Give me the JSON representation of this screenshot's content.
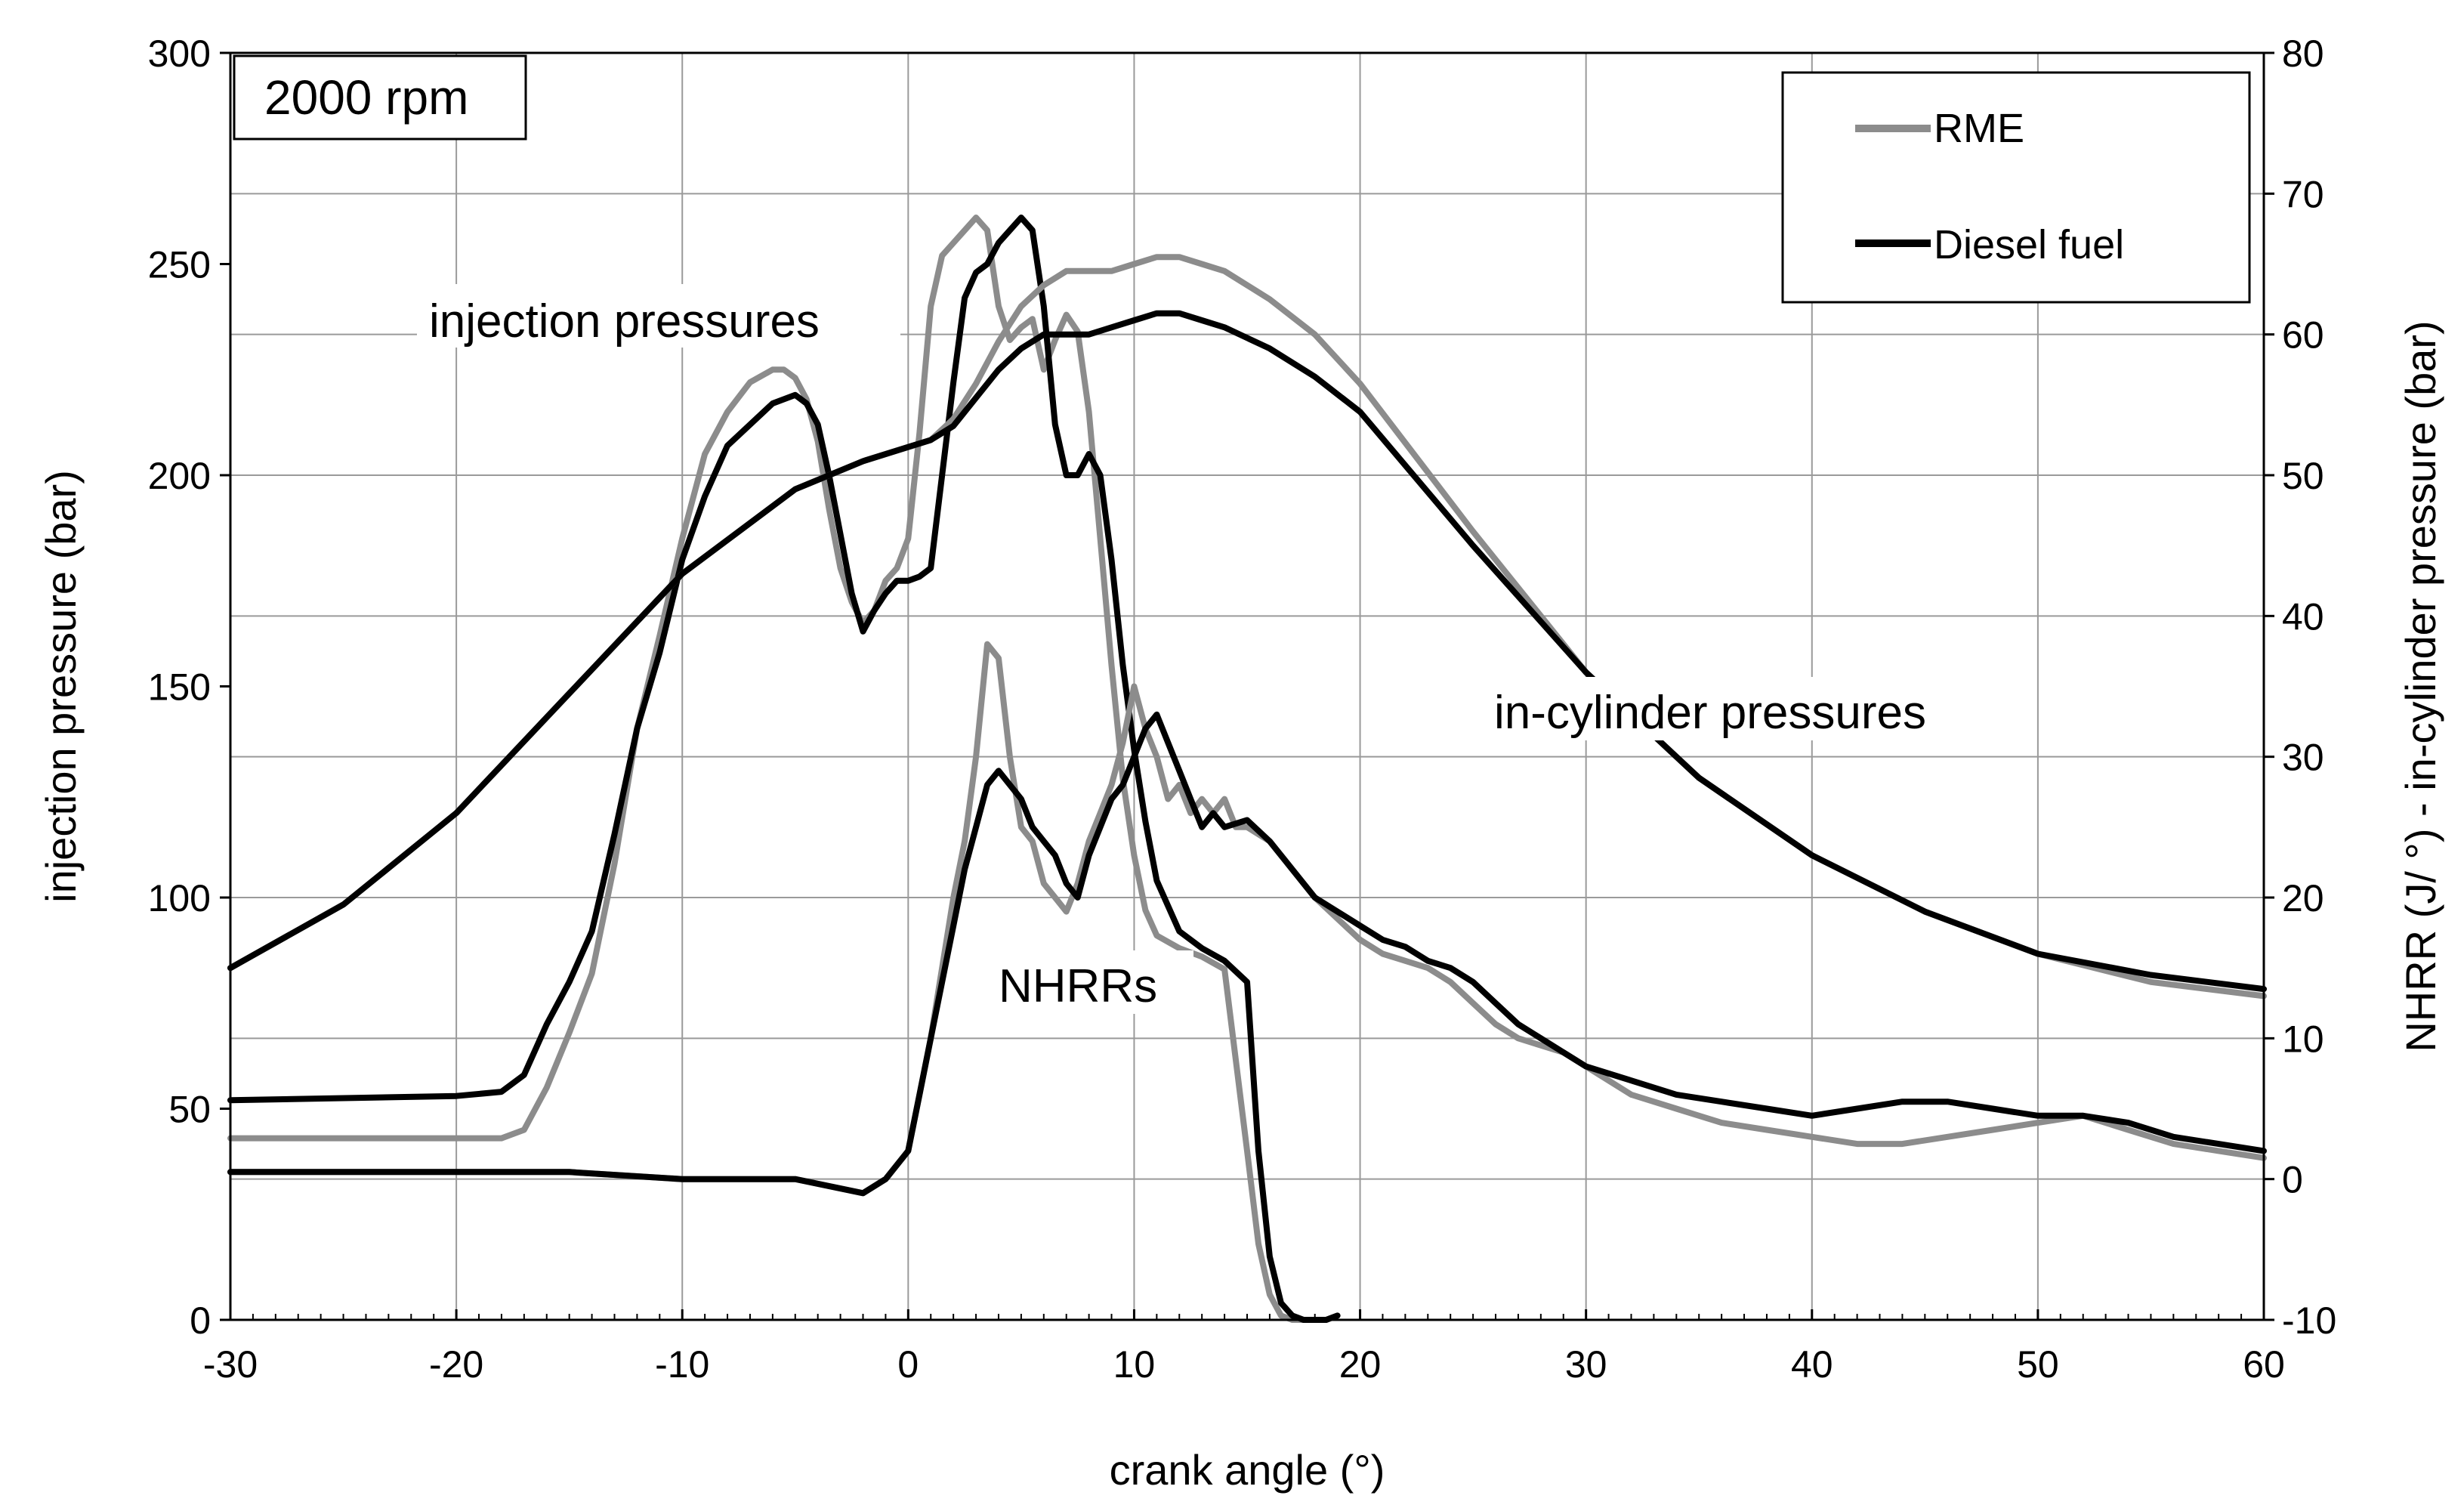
{
  "chart_data": {
    "type": "line",
    "title_box": "2000 rpm",
    "xlabel": "crank angle (°)",
    "ylabel_left": "injection pressure (bar)",
    "ylabel_right": "NHRR (J/ °) - in-cylinder pressure (bar)",
    "xlim": [
      -30,
      60
    ],
    "ylim_left": [
      0,
      300
    ],
    "ylim_right": [
      -10,
      80
    ],
    "x_ticks": [
      "-30",
      "-20",
      "-10",
      "0",
      "10",
      "20",
      "30",
      "40",
      "50",
      "60"
    ],
    "x_tick_values": [
      -30,
      -20,
      -10,
      0,
      10,
      20,
      30,
      40,
      50,
      60
    ],
    "y_left_ticks": [
      "0",
      "50",
      "100",
      "150",
      "200",
      "250",
      "300"
    ],
    "y_left_tick_values": [
      0,
      50,
      100,
      150,
      200,
      250,
      300
    ],
    "y_right_ticks": [
      "-10",
      "0",
      "10",
      "20",
      "30",
      "40",
      "50",
      "60",
      "70",
      "80"
    ],
    "y_right_tick_values": [
      -10,
      0,
      10,
      20,
      30,
      40,
      50,
      60,
      70,
      80
    ],
    "grid": true,
    "legend_position": "top-right",
    "legend": [
      {
        "name": "RME",
        "color": "#8c8c8c"
      },
      {
        "name": "Diesel fuel",
        "color": "#000000"
      }
    ],
    "annotations": {
      "injection": "injection pressures",
      "cylinder": "in-cylinder pressures",
      "nhrr": "NHRRs"
    },
    "series": [
      {
        "name": "RME injection pressure",
        "fuel": "RME",
        "axis": "left",
        "color": "#8c8c8c",
        "x": [
          -30,
          -20,
          -18,
          -17,
          -16,
          -15,
          -14,
          -13,
          -12,
          -11,
          -10,
          -9,
          -8,
          -7,
          -6,
          -5.5,
          -5,
          -4.5,
          -4,
          -3.5,
          -3,
          -2.5,
          -2,
          -1.5,
          -1,
          -0.5,
          0,
          0.5,
          1,
          1.5,
          2,
          2.5,
          3,
          3.5,
          4,
          4.5,
          5,
          5.5,
          6,
          6.5,
          7,
          7.5,
          8,
          8.5,
          9,
          9.5,
          10,
          10.5,
          11,
          12,
          13,
          14,
          15,
          15.5,
          16,
          16.5,
          17,
          17.5,
          18,
          18.5,
          19
        ],
        "y": [
          43,
          43,
          43,
          45,
          55,
          68,
          82,
          108,
          140,
          162,
          185,
          205,
          215,
          222,
          225,
          225,
          223,
          218,
          208,
          192,
          178,
          170,
          165,
          168,
          175,
          178,
          185,
          210,
          240,
          252,
          255,
          258,
          261,
          258,
          240,
          232,
          235,
          237,
          225,
          232,
          238,
          234,
          215,
          185,
          155,
          128,
          110,
          97,
          91,
          88,
          86,
          83,
          40,
          18,
          6,
          1,
          0,
          0,
          0,
          0,
          1
        ]
      },
      {
        "name": "Diesel injection pressure",
        "fuel": "Diesel fuel",
        "axis": "left",
        "color": "#000000",
        "x": [
          -30,
          -20,
          -18,
          -17,
          -16,
          -15,
          -14,
          -13,
          -12,
          -11,
          -10,
          -9,
          -8,
          -7,
          -6,
          -5,
          -4.5,
          -4,
          -3.5,
          -3,
          -2.5,
          -2,
          -1.5,
          -1,
          -0.5,
          0,
          0.5,
          1,
          1.5,
          2,
          2.5,
          3,
          3.5,
          4,
          4.5,
          5,
          5.5,
          6,
          6.5,
          7,
          7.5,
          8,
          8.5,
          9,
          9.5,
          10,
          10.5,
          11,
          12,
          13,
          14,
          15,
          15.5,
          16,
          16.5,
          17,
          17.5,
          18,
          18.5,
          19
        ],
        "y": [
          52,
          53,
          54,
          58,
          70,
          80,
          92,
          115,
          140,
          158,
          180,
          195,
          207,
          212,
          217,
          219,
          217,
          212,
          200,
          186,
          172,
          163,
          168,
          172,
          175,
          175,
          176,
          178,
          200,
          222,
          242,
          248,
          250,
          255,
          258,
          261,
          258,
          240,
          212,
          200,
          200,
          205,
          200,
          180,
          155,
          135,
          118,
          104,
          92,
          88,
          85,
          80,
          40,
          15,
          4,
          1,
          0,
          0,
          0,
          1
        ]
      },
      {
        "name": "RME in-cylinder pressure",
        "fuel": "RME",
        "axis": "right",
        "color": "#8c8c8c",
        "x": [
          -30,
          -25,
          -20,
          -15,
          -10,
          -5,
          -2,
          0,
          1,
          2,
          3,
          4,
          5,
          6,
          7,
          8,
          9,
          10,
          11,
          12,
          13,
          14,
          16,
          18,
          20,
          25,
          30,
          35,
          40,
          45,
          50,
          55,
          60
        ],
        "y": [
          15,
          19.5,
          26,
          34.5,
          43,
          49,
          51,
          52,
          52.5,
          54,
          56.5,
          59.5,
          62,
          63.5,
          64.5,
          64.5,
          64.5,
          65,
          65.5,
          65.5,
          65,
          64.5,
          62.5,
          60,
          56.5,
          46,
          36,
          28.5,
          23,
          19,
          16,
          14,
          13
        ]
      },
      {
        "name": "Diesel in-cylinder pressure",
        "fuel": "Diesel fuel",
        "axis": "right",
        "color": "#000000",
        "x": [
          -30,
          -25,
          -20,
          -15,
          -10,
          -5,
          -2,
          0,
          1,
          2,
          3,
          4,
          5,
          6,
          7,
          8,
          9,
          10,
          11,
          12,
          13,
          14,
          16,
          18,
          20,
          25,
          30,
          35,
          40,
          45,
          50,
          55,
          60
        ],
        "y": [
          15,
          19.5,
          26,
          34.5,
          43,
          49,
          51,
          52,
          52.5,
          53.5,
          55.5,
          57.5,
          59,
          60,
          60,
          60,
          60.5,
          61,
          61.5,
          61.5,
          61,
          60.5,
          59,
          57,
          54.5,
          45,
          36,
          28.5,
          23,
          19,
          16,
          14.5,
          13.5
        ]
      },
      {
        "name": "RME NHRR",
        "fuel": "RME",
        "axis": "right",
        "color": "#8c8c8c",
        "x": [
          -30,
          -25,
          -20,
          -15,
          -10,
          -5,
          -2,
          -1,
          0,
          0.5,
          1,
          1.5,
          2,
          2.5,
          3,
          3.5,
          4,
          4.5,
          5,
          5.5,
          6,
          6.5,
          7,
          7.5,
          8,
          8.5,
          9,
          9.5,
          10,
          10.5,
          11,
          11.5,
          12,
          12.5,
          13,
          13.5,
          14,
          14.5,
          15,
          16,
          17,
          18,
          19,
          20,
          21,
          22,
          23,
          24,
          25,
          26,
          27,
          28,
          29,
          30,
          31,
          32,
          33,
          34,
          35,
          36,
          38,
          40,
          42,
          44,
          46,
          48,
          50,
          52,
          54,
          56,
          58,
          60
        ],
        "y": [
          0.5,
          0.5,
          0.5,
          0.5,
          0,
          0,
          -1,
          0,
          2,
          6,
          10,
          15,
          20,
          24,
          30,
          38,
          37,
          30,
          25,
          24,
          21,
          20,
          19,
          21,
          24,
          26,
          28,
          31,
          35,
          32,
          30,
          27,
          28,
          26,
          27,
          26,
          27,
          25,
          25,
          24,
          22,
          20,
          18.5,
          17,
          16,
          15.5,
          15,
          14,
          12.5,
          11,
          10,
          9.5,
          9,
          8,
          7,
          6,
          5.5,
          5,
          4.5,
          4,
          3.5,
          3,
          2.5,
          2.5,
          3,
          3.5,
          4,
          4.5,
          3.5,
          2.5,
          2,
          1.5
        ]
      },
      {
        "name": "Diesel NHRR",
        "fuel": "Diesel fuel",
        "axis": "right",
        "color": "#000000",
        "x": [
          -30,
          -25,
          -20,
          -15,
          -10,
          -5,
          -2,
          -1,
          0,
          0.5,
          1,
          1.5,
          2,
          2.5,
          3,
          3.5,
          4,
          4.5,
          5,
          5.5,
          6,
          6.5,
          7,
          7.5,
          8,
          8.5,
          9,
          9.5,
          10,
          10.5,
          11,
          11.5,
          12,
          12.5,
          13,
          13.5,
          14,
          15,
          16,
          17,
          18,
          19,
          20,
          21,
          22,
          23,
          24,
          25,
          26,
          27,
          28,
          29,
          30,
          32,
          34,
          36,
          38,
          40,
          42,
          44,
          46,
          48,
          50,
          52,
          54,
          56,
          58,
          60
        ],
        "y": [
          0.5,
          0.5,
          0.5,
          0.5,
          0,
          0,
          -1,
          0,
          2,
          6,
          10,
          14,
          18,
          22,
          25,
          28,
          29,
          28,
          27,
          25,
          24,
          23,
          21,
          20,
          23,
          25,
          27,
          28,
          30,
          32,
          33,
          31,
          29,
          27,
          25,
          26,
          25,
          25.5,
          24,
          22,
          20,
          19,
          18,
          17,
          16.5,
          15.5,
          15,
          14,
          12.5,
          11,
          10,
          9,
          8,
          7,
          6,
          5.5,
          5,
          4.5,
          5,
          5.5,
          5.5,
          5,
          4.5,
          4.5,
          4,
          3,
          2.5,
          2
        ]
      }
    ]
  }
}
